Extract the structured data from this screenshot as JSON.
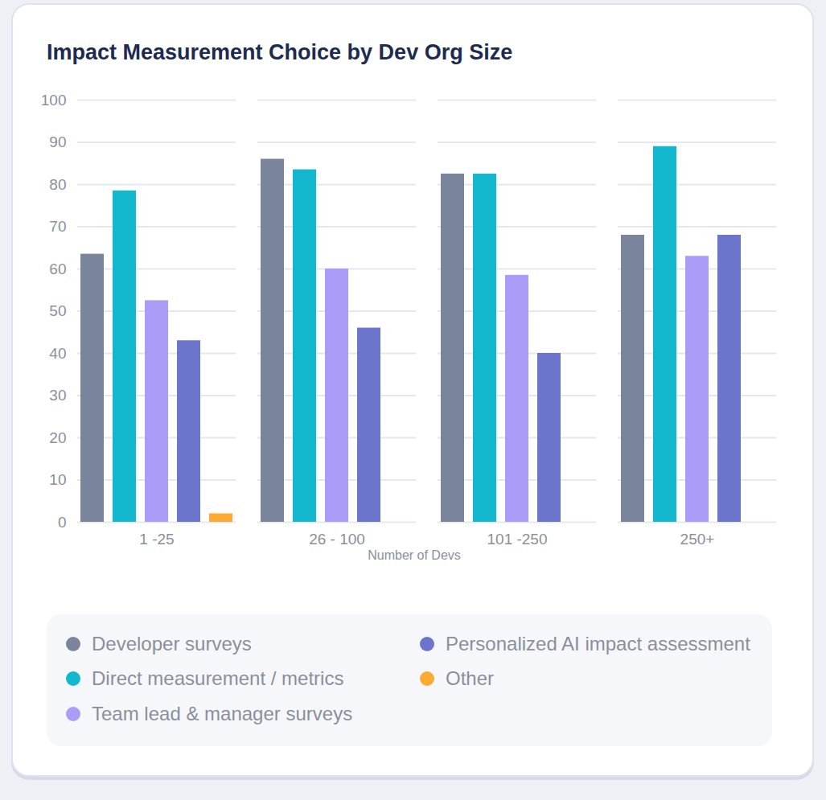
{
  "chart_data": {
    "type": "bar",
    "title": "Impact Measurement Choice by Dev Org Size",
    "x_label": "Number of Devs",
    "categories": [
      "1 -25",
      "26 - 100",
      "101 -250",
      "250+"
    ],
    "series": [
      {
        "name": "Developer surveys",
        "color": "#7a849c",
        "values": [
          63.5,
          86,
          82.5,
          68
        ]
      },
      {
        "name": "Direct measurement / metrics",
        "color": "#13b8cf",
        "values": [
          78.5,
          83.5,
          82.5,
          89
        ]
      },
      {
        "name": "Team lead & manager surveys",
        "color": "#ab9cf8",
        "values": [
          52.5,
          60,
          58.5,
          63
        ]
      },
      {
        "name": "Personalized AI impact assessment",
        "color": "#6b75cc",
        "values": [
          43,
          46,
          40,
          68
        ]
      },
      {
        "name": "Other",
        "color": "#fbab34",
        "values": [
          2,
          null,
          null,
          null
        ]
      }
    ],
    "ylim": [
      0,
      100
    ],
    "yticks": [
      0,
      10,
      20,
      30,
      40,
      50,
      60,
      70,
      80,
      90,
      100
    ],
    "grid": true,
    "legend": "bottom"
  }
}
